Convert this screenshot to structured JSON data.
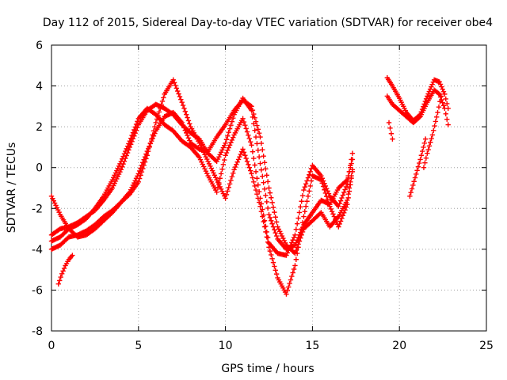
{
  "chart_data": {
    "type": "scatter",
    "title": "Day 112 of 2015, Sidereal Day-to-day VTEC variation (SDTVAR) for receiver obe4",
    "xlabel": "GPS time / hours",
    "ylabel": "SDTVAR / TECUs",
    "xlim": [
      0,
      25
    ],
    "ylim": [
      -8,
      6
    ],
    "xticks": [
      "0",
      "5",
      "10",
      "15",
      "20",
      "25"
    ],
    "yticks": [
      "-8",
      "-6",
      "-4",
      "-2",
      "0",
      "2",
      "4",
      "6"
    ],
    "grid": true,
    "legend": "none",
    "marker": "plus",
    "color": "#ff0000",
    "series": [
      {
        "x": [
          0.0,
          0.5,
          1.0,
          1.5,
          2.0,
          2.5,
          3.0,
          3.5,
          4.0,
          4.5,
          5.0,
          5.5,
          6.0,
          6.5,
          7.0,
          7.5,
          8.0,
          8.5,
          9.0,
          9.5,
          10.0,
          10.5,
          11.0,
          11.5,
          12.0,
          12.5,
          13.0,
          13.5,
          14.0,
          14.5,
          15.0,
          15.5,
          16.0,
          16.5,
          17.0,
          17.3
        ],
        "y": [
          -3.3,
          -3.0,
          -2.9,
          -2.7,
          -2.4,
          -2.1,
          -1.6,
          -1.0,
          -0.1,
          1.0,
          2.1,
          2.8,
          3.1,
          2.9,
          2.6,
          2.1,
          1.7,
          1.4,
          0.7,
          0.3,
          1.2,
          2.6,
          3.4,
          2.8,
          0.2,
          -2.3,
          -3.5,
          -4.0,
          -3.8,
          -2.8,
          -2.2,
          -1.6,
          -1.8,
          -1.0,
          -0.6,
          0.4
        ]
      },
      {
        "x": [
          0.0,
          0.5,
          1.0,
          1.5,
          2.0,
          2.5,
          3.0,
          3.5,
          4.0,
          4.5,
          5.0,
          5.5,
          6.0,
          6.5,
          7.0,
          7.5,
          8.0,
          8.5,
          9.0,
          9.5,
          10.0,
          10.5,
          11.0,
          11.5,
          12.0,
          12.5,
          13.0,
          13.5,
          14.0,
          14.5,
          15.0,
          15.5,
          16.0,
          16.5,
          17.0,
          17.3
        ],
        "y": [
          -4.0,
          -3.8,
          -3.4,
          -3.3,
          -3.1,
          -2.8,
          -2.4,
          -2.1,
          -1.7,
          -1.2,
          -0.3,
          0.8,
          1.8,
          2.5,
          2.7,
          2.2,
          1.2,
          0.9,
          0.8,
          1.5,
          2.1,
          2.8,
          3.3,
          3.0,
          1.5,
          -1.0,
          -2.9,
          -3.8,
          -4.2,
          -3.0,
          -2.6,
          -2.2,
          -2.9,
          -2.4,
          -1.6,
          -0.1
        ]
      },
      {
        "x": [
          0.0,
          0.5,
          1.0,
          1.5,
          2.0,
          2.5,
          3.0,
          3.5,
          4.0,
          4.5,
          5.0,
          5.5,
          6.0,
          6.5,
          7.0,
          7.5,
          8.0,
          8.5,
          9.0,
          9.5,
          10.0,
          10.5,
          11.0,
          11.5,
          12.0,
          12.5,
          13.0,
          13.5,
          14.0,
          14.5,
          15.0,
          15.5,
          16.0,
          16.5,
          17.0,
          17.3
        ],
        "y": [
          -1.4,
          -2.3,
          -3.0,
          -3.4,
          -3.3,
          -3.0,
          -2.6,
          -2.2,
          -1.7,
          -1.3,
          -0.7,
          0.6,
          2.2,
          3.6,
          4.3,
          3.2,
          2.0,
          1.2,
          0.3,
          -0.6,
          -1.5,
          -0.1,
          0.9,
          -0.3,
          -1.9,
          -3.9,
          -5.4,
          -6.2,
          -4.8,
          -2.4,
          -0.4,
          -0.6,
          -1.9,
          -2.9,
          -1.8,
          -0.2
        ]
      },
      {
        "x": [
          0.0,
          0.5,
          1.0,
          1.5,
          2.0,
          2.5,
          3.0,
          3.5,
          4.0,
          4.5,
          5.0,
          5.5,
          6.0,
          6.5,
          7.0,
          7.5,
          8.0,
          8.5,
          9.0,
          9.5,
          10.0,
          10.5,
          11.0,
          11.5,
          12.0,
          12.5,
          13.0,
          13.5,
          14.0,
          14.5,
          15.0,
          15.5,
          16.0,
          16.5,
          17.0,
          17.3
        ],
        "y": [
          -3.6,
          -3.4,
          -3.0,
          -2.8,
          -2.5,
          -2.0,
          -1.4,
          -0.6,
          0.3,
          1.3,
          2.4,
          2.9,
          2.6,
          2.1,
          1.8,
          1.3,
          1.0,
          0.5,
          -0.4,
          -1.2,
          0.6,
          1.6,
          2.4,
          1.1,
          -1.5,
          -3.7,
          -4.2,
          -4.3,
          -3.3,
          -1.1,
          0.1,
          -0.4,
          -1.4,
          -1.9,
          -0.8,
          0.7
        ]
      },
      {
        "x": [
          0.4,
          0.6,
          0.8,
          1.0,
          1.2
        ],
        "y": [
          -5.7,
          -5.2,
          -4.8,
          -4.5,
          -4.3
        ]
      },
      {
        "x": [
          19.3,
          19.6,
          20.0,
          20.4,
          20.8,
          21.2,
          21.6,
          22.0,
          22.3,
          22.6,
          22.8
        ],
        "y": [
          4.4,
          4.0,
          3.4,
          2.7,
          2.3,
          2.6,
          3.5,
          4.3,
          4.2,
          3.6,
          2.9
        ]
      },
      {
        "x": [
          19.3,
          19.6,
          20.0,
          20.4,
          20.8,
          21.2,
          21.6,
          22.0,
          22.3,
          22.6,
          22.8
        ],
        "y": [
          3.5,
          3.1,
          2.8,
          2.5,
          2.2,
          2.5,
          3.2,
          3.8,
          3.6,
          2.9,
          2.1
        ]
      },
      {
        "x": [
          19.4,
          19.6
        ],
        "y": [
          2.2,
          1.4
        ]
      },
      {
        "x": [
          20.6,
          20.9,
          21.2,
          21.5
        ],
        "y": [
          -1.4,
          -0.5,
          0.4,
          1.4
        ]
      },
      {
        "x": [
          21.4,
          21.6,
          21.9,
          22.2,
          22.4
        ],
        "y": [
          0.0,
          0.7,
          1.6,
          2.7,
          3.5
        ]
      }
    ]
  }
}
